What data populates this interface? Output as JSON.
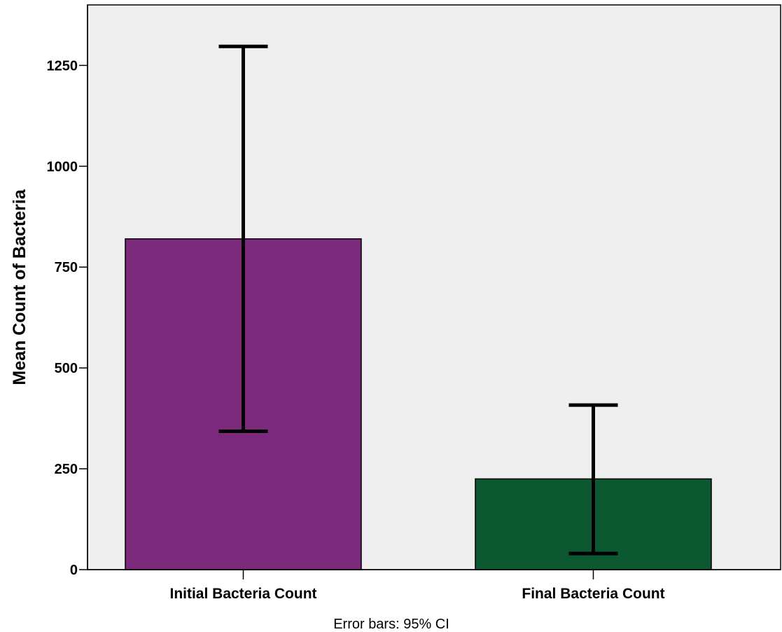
{
  "chart_data": {
    "type": "bar",
    "categories": [
      "Initial Bacteria Count",
      "Final Bacteria Count"
    ],
    "values": [
      820,
      225
    ],
    "error_bars": [
      {
        "low": 343,
        "high": 1297
      },
      {
        "low": 40,
        "high": 408
      }
    ],
    "error_bar_type": "95% CI",
    "ylabel": "Mean Count of Bacteria",
    "xlabel": "",
    "ylim": [
      0,
      1400
    ],
    "yticks": [
      0,
      250,
      500,
      750,
      1000,
      1250
    ],
    "ytick_labels": [
      "0",
      "250",
      "500",
      "750",
      "1000",
      "1250"
    ],
    "footnote": "Error bars: 95% CI",
    "grid": false,
    "legend": "none",
    "colors": {
      "bars": [
        "#7b2a7b",
        "#0c5830"
      ],
      "plot_background": "#efefef",
      "error_bar": "#000000"
    }
  }
}
